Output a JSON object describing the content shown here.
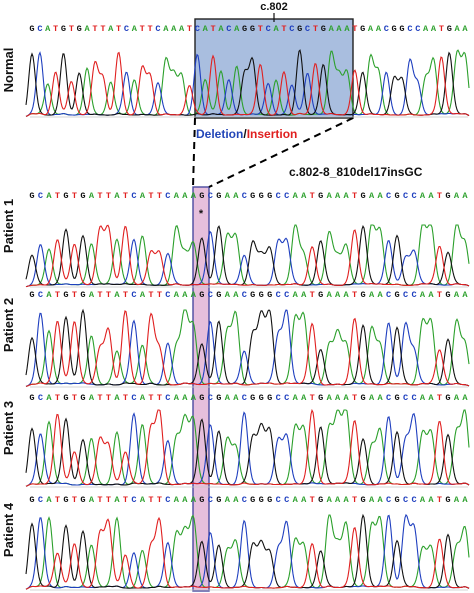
{
  "annotations": {
    "position": "c.802",
    "deletion_word": "Deletion",
    "slash": "/",
    "insertion_word": "Insertion",
    "mutation": "c.802-8_810del17insGC",
    "star": "*"
  },
  "colors": {
    "A": "#2ca02c",
    "C": "#1f3fbf",
    "G": "#111111",
    "T": "#e02020",
    "deletion": "#2346b8",
    "insertion": "#e02020",
    "deletion_box_fill": "#a9bedf",
    "insertion_band_fill": "#e6bfdc",
    "insertion_band_stroke": "#4a4aa0"
  },
  "tracks": [
    {
      "label": "Normal",
      "sequence": "GCATGTGATTATCATTCAAATCATACAGGTCATCGCTGAAATGAACGGCCAATGAA"
    },
    {
      "label": "Patient 1",
      "sequence": "GCATGTGATTATCATTCAAAGCGAACGGGCCAATGAAATGAACGCCAATGAA"
    },
    {
      "label": "Patient 2",
      "sequence": "GCATGTGATTATCATTCAAAGCGAACGGGCCAATGAAATGAACGCCAATGAA"
    },
    {
      "label": "Patient 3",
      "sequence": "GCATGTGATTATCATTCAAAGCGAACGGGCCAATGAAATGAACGCCAATGAA"
    },
    {
      "label": "Patient 4",
      "sequence": "GCATGTGATTATCATTCAAAGCGAACGGGCCAATGAAATGAACGCCAATGAA"
    }
  ]
}
